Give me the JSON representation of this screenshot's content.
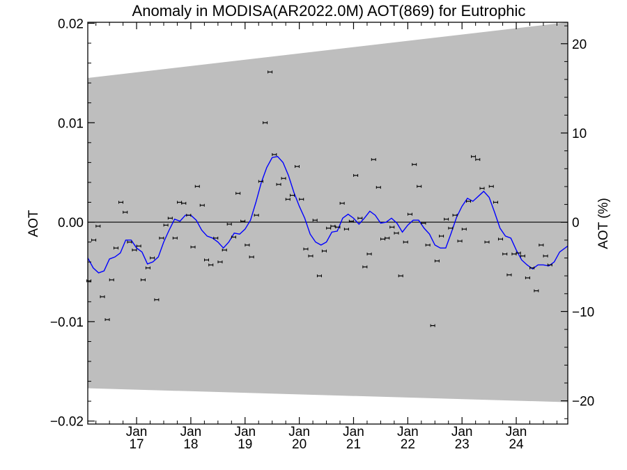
{
  "chart_data": {
    "type": "scatter",
    "title": "Anomaly in MODISA(AR2022.0M) AOT(869) for Eutrophic",
    "ylabel_left": "AOT",
    "ylabel_right": "AOT (%)",
    "xlim": [
      2016.1,
      2024.95
    ],
    "ylim_left": [
      -0.0203,
      0.0201
    ],
    "ylim_right": [
      -22.6,
      22.4
    ],
    "y_ticks_left": [
      {
        "value": -0.02,
        "label": "−0.02"
      },
      {
        "value": -0.01,
        "label": "−0.01"
      },
      {
        "value": 0.0,
        "label": "0.00"
      },
      {
        "value": 0.01,
        "label": "0.01"
      },
      {
        "value": 0.02,
        "label": "0.02"
      }
    ],
    "y_ticks_right": [
      {
        "value": -20,
        "label": "−20"
      },
      {
        "value": -10,
        "label": "−10"
      },
      {
        "value": 0,
        "label": "0"
      },
      {
        "value": 10,
        "label": "10"
      },
      {
        "value": 20,
        "label": "20"
      }
    ],
    "x_ticks": [
      {
        "value": 2017.0,
        "month": "Jan",
        "year": "17"
      },
      {
        "value": 2018.0,
        "month": "Jan",
        "year": "18"
      },
      {
        "value": 2019.0,
        "month": "Jan",
        "year": "19"
      },
      {
        "value": 2020.0,
        "month": "Jan",
        "year": "20"
      },
      {
        "value": 2021.0,
        "month": "Jan",
        "year": "21"
      },
      {
        "value": 2022.0,
        "month": "Jan",
        "year": "22"
      },
      {
        "value": 2023.0,
        "month": "Jan",
        "year": "23"
      },
      {
        "value": 2024.0,
        "month": "Jan",
        "year": "24"
      }
    ],
    "uncertainty_band": {
      "upper": [
        [
          2016.1,
          0.0145
        ],
        [
          2024.95,
          0.0201
        ]
      ],
      "lower": [
        [
          2016.1,
          -0.0167
        ],
        [
          2024.95,
          -0.0181
        ]
      ]
    },
    "points": [
      [
        2016.12,
        -0.0059
      ],
      [
        2016.21,
        -0.0018
      ],
      [
        2016.29,
        -0.0004
      ],
      [
        2016.37,
        -0.0075
      ],
      [
        2016.46,
        -0.0098
      ],
      [
        2016.54,
        -0.0058
      ],
      [
        2016.62,
        -0.0026
      ],
      [
        2016.71,
        0.002
      ],
      [
        2016.79,
        0.001
      ],
      [
        2016.87,
        -0.002
      ],
      [
        2016.96,
        -0.0028
      ],
      [
        2017.04,
        -0.0024
      ],
      [
        2017.12,
        -0.0058
      ],
      [
        2017.21,
        -0.0046
      ],
      [
        2017.29,
        -0.0036
      ],
      [
        2017.37,
        -0.0078
      ],
      [
        2017.46,
        -0.0016
      ],
      [
        2017.54,
        -0.0003
      ],
      [
        2017.62,
        0.0004
      ],
      [
        2017.71,
        -0.0016
      ],
      [
        2017.79,
        0.002
      ],
      [
        2017.87,
        0.0019
      ],
      [
        2017.96,
        0.0007
      ],
      [
        2018.04,
        -0.0025
      ],
      [
        2018.12,
        0.0036
      ],
      [
        2018.21,
        0.0017
      ],
      [
        2018.29,
        -0.0038
      ],
      [
        2018.37,
        -0.0043
      ],
      [
        2018.46,
        -0.0016
      ],
      [
        2018.54,
        -0.004
      ],
      [
        2018.62,
        -0.0028
      ],
      [
        2018.71,
        -0.0002
      ],
      [
        2018.79,
        -0.0015
      ],
      [
        2018.87,
        0.0029
      ],
      [
        2018.96,
        0.0001
      ],
      [
        2019.04,
        -0.0023
      ],
      [
        2019.12,
        -0.0035
      ],
      [
        2019.21,
        0.0007
      ],
      [
        2019.29,
        0.0041
      ],
      [
        2019.37,
        0.01
      ],
      [
        2019.46,
        0.0151
      ],
      [
        2019.54,
        0.0068
      ],
      [
        2019.62,
        0.0038
      ],
      [
        2019.71,
        0.0044
      ],
      [
        2019.79,
        0.0023
      ],
      [
        2019.87,
        0.0027
      ],
      [
        2019.96,
        0.0056
      ],
      [
        2020.04,
        0.0023
      ],
      [
        2020.12,
        -0.0027
      ],
      [
        2020.21,
        -0.0034
      ],
      [
        2020.29,
        0.0002
      ],
      [
        2020.37,
        -0.0054
      ],
      [
        2020.46,
        -0.0029
      ],
      [
        2020.54,
        -0.0006
      ],
      [
        2020.62,
        -0.0004
      ],
      [
        2020.71,
        -0.0005
      ],
      [
        2020.79,
        0.0019
      ],
      [
        2020.87,
        -0.0007
      ],
      [
        2020.96,
        0.0001
      ],
      [
        2021.04,
        0.0047
      ],
      [
        2021.12,
        0.0004
      ],
      [
        2021.21,
        -0.0045
      ],
      [
        2021.29,
        -0.0032
      ],
      [
        2021.37,
        0.0063
      ],
      [
        2021.46,
        0.0035
      ],
      [
        2021.54,
        -0.0017
      ],
      [
        2021.62,
        -0.0016
      ],
      [
        2021.71,
        -0.0005
      ],
      [
        2021.79,
        -0.0011
      ],
      [
        2021.87,
        -0.0054
      ],
      [
        2021.96,
        -0.002
      ],
      [
        2022.04,
        0.0008
      ],
      [
        2022.12,
        0.0058
      ],
      [
        2022.21,
        0.0036
      ],
      [
        2022.29,
        -0.0001
      ],
      [
        2022.37,
        -0.0023
      ],
      [
        2022.46,
        -0.0104
      ],
      [
        2022.54,
        -0.0039
      ],
      [
        2022.62,
        -0.0014
      ],
      [
        2022.71,
        0.0003
      ],
      [
        2022.79,
        -0.0006
      ],
      [
        2022.87,
        0.0007
      ],
      [
        2022.96,
        -0.0019
      ],
      [
        2023.04,
        -0.0007
      ],
      [
        2023.12,
        0.0021
      ],
      [
        2023.21,
        0.0066
      ],
      [
        2023.29,
        0.0063
      ],
      [
        2023.37,
        0.0034
      ],
      [
        2023.46,
        -0.002
      ],
      [
        2023.54,
        0.0036
      ],
      [
        2023.62,
        0.002
      ],
      [
        2023.71,
        -0.0017
      ],
      [
        2023.79,
        -0.0032
      ],
      [
        2023.87,
        -0.0053
      ],
      [
        2023.96,
        -0.0032
      ],
      [
        2024.04,
        -0.0031
      ],
      [
        2024.12,
        -0.0034
      ],
      [
        2024.21,
        -0.0056
      ],
      [
        2024.29,
        -0.0046
      ],
      [
        2024.37,
        -0.0069
      ],
      [
        2024.46,
        -0.0023
      ],
      [
        2024.54,
        -0.0034
      ],
      [
        2024.62,
        -0.0043
      ]
    ],
    "smooth_line": [
      [
        2016.1,
        -0.0036
      ],
      [
        2016.2,
        -0.0046
      ],
      [
        2016.3,
        -0.0051
      ],
      [
        2016.4,
        -0.0049
      ],
      [
        2016.5,
        -0.0037
      ],
      [
        2016.6,
        -0.0035
      ],
      [
        2016.7,
        -0.0031
      ],
      [
        2016.8,
        -0.0018
      ],
      [
        2016.9,
        -0.0018
      ],
      [
        2017.0,
        -0.0026
      ],
      [
        2017.1,
        -0.003
      ],
      [
        2017.2,
        -0.0042
      ],
      [
        2017.3,
        -0.004
      ],
      [
        2017.4,
        -0.0035
      ],
      [
        2017.5,
        -0.002
      ],
      [
        2017.6,
        -0.0008
      ],
      [
        2017.7,
        0.0003
      ],
      [
        2017.8,
        0.0001
      ],
      [
        2017.9,
        0.0007
      ],
      [
        2018.0,
        0.0007
      ],
      [
        2018.1,
        0.0002
      ],
      [
        2018.2,
        -0.0008
      ],
      [
        2018.3,
        -0.0014
      ],
      [
        2018.4,
        -0.0016
      ],
      [
        2018.5,
        -0.002
      ],
      [
        2018.6,
        -0.0026
      ],
      [
        2018.7,
        -0.002
      ],
      [
        2018.8,
        -0.0011
      ],
      [
        2018.9,
        -0.0012
      ],
      [
        2019.0,
        -0.0007
      ],
      [
        2019.1,
        0.0002
      ],
      [
        2019.2,
        0.002
      ],
      [
        2019.3,
        0.004
      ],
      [
        2019.4,
        0.0055
      ],
      [
        2019.5,
        0.0065
      ],
      [
        2019.6,
        0.0066
      ],
      [
        2019.7,
        0.006
      ],
      [
        2019.8,
        0.0047
      ],
      [
        2019.9,
        0.003
      ],
      [
        2020.0,
        0.0016
      ],
      [
        2020.1,
        0.0004
      ],
      [
        2020.2,
        -0.0012
      ],
      [
        2020.3,
        -0.002
      ],
      [
        2020.4,
        -0.0023
      ],
      [
        2020.5,
        -0.002
      ],
      [
        2020.6,
        -0.001
      ],
      [
        2020.7,
        -0.0009
      ],
      [
        2020.8,
        0.0004
      ],
      [
        2020.9,
        0.0008
      ],
      [
        2021.0,
        0.0004
      ],
      [
        2021.1,
        -0.0002
      ],
      [
        2021.2,
        0.0004
      ],
      [
        2021.3,
        0.0011
      ],
      [
        2021.4,
        0.0007
      ],
      [
        2021.5,
        -0.0001
      ],
      [
        2021.6,
        0.0
      ],
      [
        2021.7,
        0.0004
      ],
      [
        2021.8,
        -0.0001
      ],
      [
        2021.9,
        -0.001
      ],
      [
        2022.0,
        -0.0003
      ],
      [
        2022.1,
        0.0002
      ],
      [
        2022.2,
        0.0002
      ],
      [
        2022.3,
        -0.0006
      ],
      [
        2022.4,
        -0.0012
      ],
      [
        2022.5,
        -0.0023
      ],
      [
        2022.6,
        -0.0026
      ],
      [
        2022.7,
        -0.0026
      ],
      [
        2022.8,
        -0.0011
      ],
      [
        2022.9,
        0.0005
      ],
      [
        2023.0,
        0.0016
      ],
      [
        2023.1,
        0.0024
      ],
      [
        2023.2,
        0.0021
      ],
      [
        2023.3,
        0.0026
      ],
      [
        2023.4,
        0.0031
      ],
      [
        2023.5,
        0.0025
      ],
      [
        2023.6,
        0.001
      ],
      [
        2023.7,
        -0.0006
      ],
      [
        2023.8,
        -0.0014
      ],
      [
        2023.9,
        -0.0016
      ],
      [
        2024.0,
        -0.0028
      ],
      [
        2024.1,
        -0.0038
      ],
      [
        2024.2,
        -0.0043
      ],
      [
        2024.3,
        -0.0047
      ],
      [
        2024.4,
        -0.0043
      ],
      [
        2024.5,
        -0.0043
      ],
      [
        2024.6,
        -0.0044
      ],
      [
        2024.7,
        -0.004
      ],
      [
        2024.8,
        -0.003
      ],
      [
        2024.9,
        -0.0026
      ],
      [
        2024.95,
        -0.0024
      ]
    ],
    "grid": false,
    "zero_line": true,
    "colors": {
      "band": "#bebebe",
      "line": "#0000ff",
      "points": "#000000",
      "axes": "#000000"
    }
  }
}
